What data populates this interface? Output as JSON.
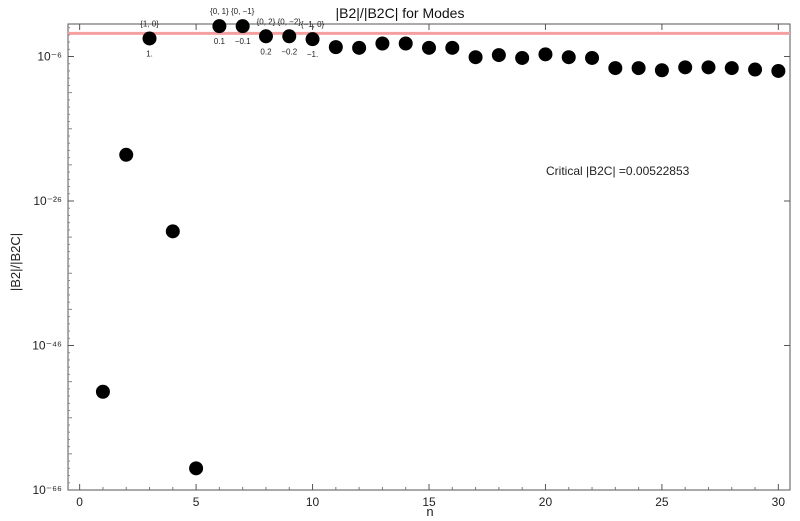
{
  "chart_data": {
    "type": "scatter",
    "title": "|B2|/|B2C| for Modes",
    "xlabel": "n",
    "ylabel": "|B2|/|B2C|",
    "yscale": "log",
    "xlim": [
      -0.5,
      30.5
    ],
    "ylim_exp": [
      -66,
      -1.5
    ],
    "x_ticks": [
      0,
      5,
      10,
      15,
      20,
      25,
      30
    ],
    "y_tick_exponents": [
      -66,
      -46,
      -26,
      -6
    ],
    "y_tick_labels": [
      "10⁻⁶⁶",
      "10⁻⁴⁶",
      "10⁻²⁶",
      "10⁻⁶"
    ],
    "points": [
      {
        "n": 1,
        "log10": -52.4
      },
      {
        "n": 2,
        "log10": -19.6
      },
      {
        "n": 3,
        "log10": -3.5,
        "ann_top": "{1, 0}",
        "ann_bottom": "1."
      },
      {
        "n": 4,
        "log10": -30.2
      },
      {
        "n": 5,
        "log10": -63.0
      },
      {
        "n": 6,
        "log10": -1.8,
        "ann_top": "{0, 1}",
        "ann_bottom": "0.1"
      },
      {
        "n": 7,
        "log10": -1.8,
        "ann_top": "{0, −1}",
        "ann_bottom": "−0.1"
      },
      {
        "n": 8,
        "log10": -3.2,
        "ann_top": "{0, 2}",
        "ann_bottom": "0.2"
      },
      {
        "n": 9,
        "log10": -3.2,
        "ann_top": "{0, −2}",
        "ann_bottom": "−0.2"
      },
      {
        "n": 10,
        "log10": -3.6,
        "ann_top": "{−1, 0}",
        "ann_bottom": "−1."
      },
      {
        "n": 11,
        "log10": -4.7
      },
      {
        "n": 12,
        "log10": -4.8
      },
      {
        "n": 13,
        "log10": -4.2
      },
      {
        "n": 14,
        "log10": -4.2
      },
      {
        "n": 15,
        "log10": -4.8
      },
      {
        "n": 16,
        "log10": -4.8
      },
      {
        "n": 17,
        "log10": -6.1
      },
      {
        "n": 18,
        "log10": -5.8
      },
      {
        "n": 19,
        "log10": -6.2
      },
      {
        "n": 20,
        "log10": -5.7
      },
      {
        "n": 21,
        "log10": -6.1
      },
      {
        "n": 22,
        "log10": -6.2
      },
      {
        "n": 23,
        "log10": -7.6
      },
      {
        "n": 24,
        "log10": -7.6
      },
      {
        "n": 25,
        "log10": -7.9
      },
      {
        "n": 26,
        "log10": -7.5
      },
      {
        "n": 27,
        "log10": -7.5
      },
      {
        "n": 28,
        "log10": -7.6
      },
      {
        "n": 29,
        "log10": -7.8
      },
      {
        "n": 30,
        "log10": -8.0
      }
    ],
    "reference_line": {
      "log10": -2.8,
      "color": "#f4a0a0"
    },
    "critical_label": "Critical |B2C| =0.00522853",
    "marker_color": "#000000",
    "grid": false,
    "frame": true
  }
}
